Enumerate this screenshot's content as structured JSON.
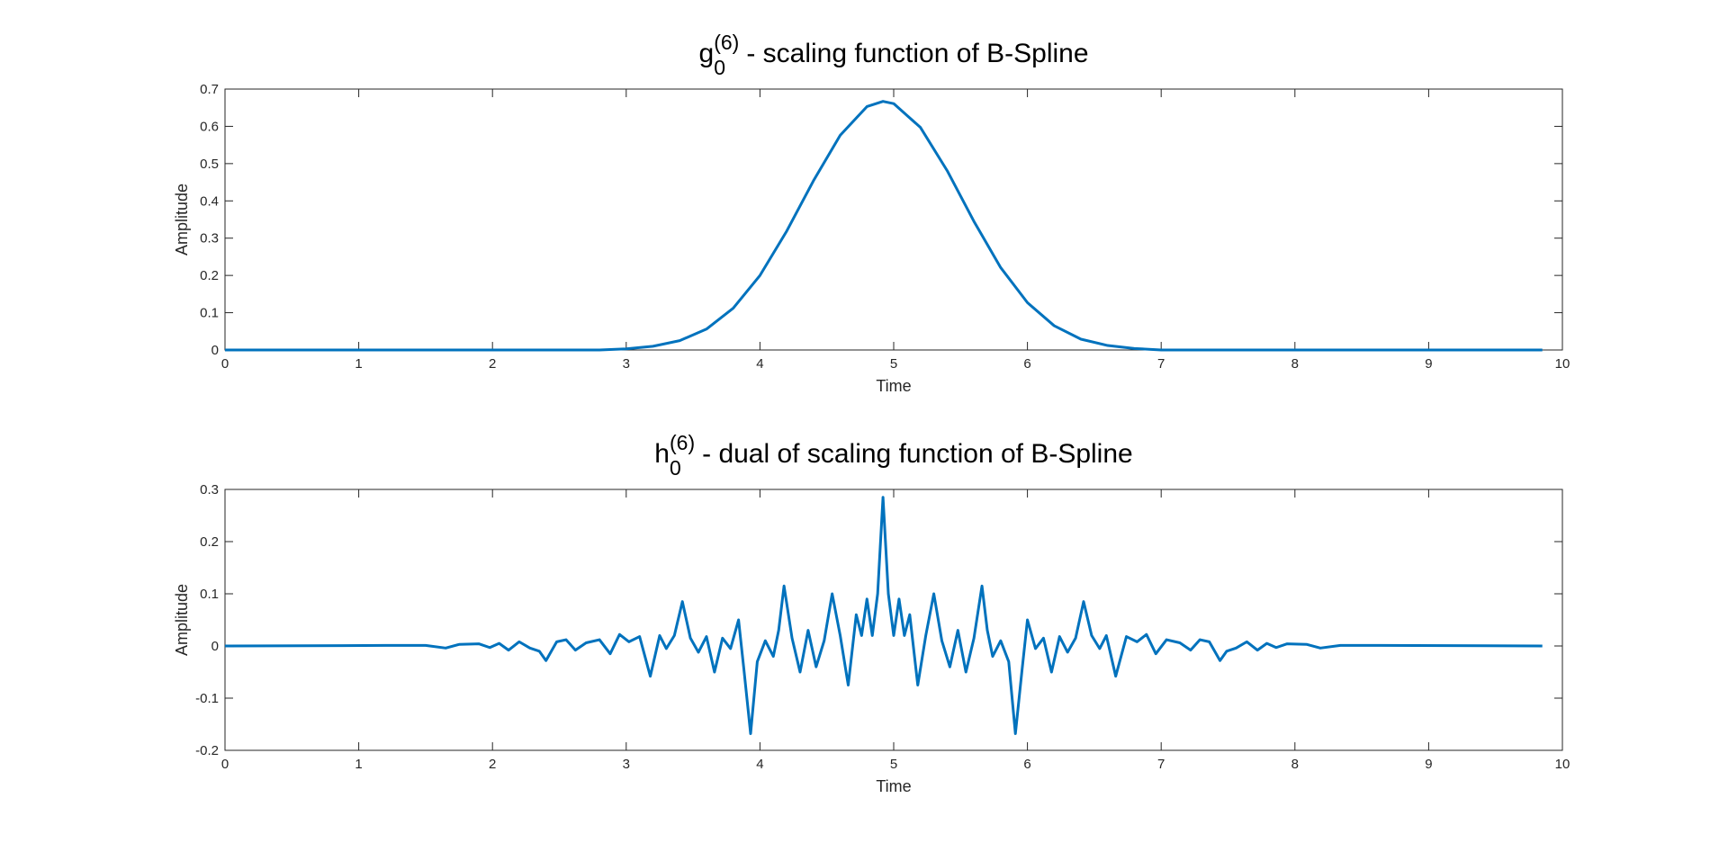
{
  "chart_data": [
    {
      "type": "line",
      "title": {
        "base": "g",
        "sup": "(6)",
        "sub": "0",
        "text": "- scaling function of B-Spline"
      },
      "xlabel": "Time",
      "ylabel": "Amplitude",
      "color": "#0072bd",
      "x": [
        0,
        1,
        2,
        2.8,
        3.0,
        3.2,
        3.4,
        3.6,
        3.8,
        4.0,
        4.2,
        4.4,
        4.6,
        4.8,
        4.92,
        5.0,
        5.2,
        5.4,
        5.6,
        5.8,
        6.0,
        6.2,
        6.4,
        6.6,
        6.8,
        7.0,
        8,
        9,
        9.85
      ],
      "values": [
        0,
        0,
        0,
        0,
        0.003,
        0.01,
        0.025,
        0.056,
        0.112,
        0.2,
        0.319,
        0.454,
        0.576,
        0.653,
        0.667,
        0.661,
        0.597,
        0.481,
        0.345,
        0.221,
        0.127,
        0.065,
        0.029,
        0.012,
        0.004,
        0,
        0,
        0,
        0
      ],
      "xlim": [
        0,
        10
      ],
      "xticks": [
        0,
        1,
        2,
        3,
        4,
        5,
        6,
        7,
        8,
        9,
        10
      ],
      "ylim": [
        0,
        0.7
      ],
      "yticks": [
        0,
        0.1,
        0.2,
        0.3,
        0.4,
        0.5,
        0.6,
        0.7
      ]
    },
    {
      "type": "line",
      "title": {
        "base": "h",
        "sup": "(6)",
        "sub": "0",
        "text": "- dual of scaling function of B-Spline"
      },
      "xlabel": "Time",
      "ylabel": "Amplitude",
      "color": "#0072bd",
      "x": [
        0,
        1.2,
        1.5,
        1.65,
        1.75,
        1.9,
        1.98,
        2.05,
        2.12,
        2.2,
        2.28,
        2.35,
        2.4,
        2.48,
        2.55,
        2.62,
        2.7,
        2.8,
        2.88,
        2.95,
        3.02,
        3.1,
        3.18,
        3.25,
        3.3,
        3.36,
        3.42,
        3.48,
        3.54,
        3.6,
        3.66,
        3.72,
        3.78,
        3.84,
        3.88,
        3.93,
        3.98,
        4.04,
        4.1,
        4.14,
        4.18,
        4.24,
        4.3,
        4.36,
        4.42,
        4.48,
        4.54,
        4.6,
        4.66,
        4.72,
        4.76,
        4.8,
        4.84,
        4.88,
        4.92,
        4.96,
        5.0,
        5.04,
        5.08,
        5.12,
        5.18,
        5.24,
        5.3,
        5.36,
        5.42,
        5.48,
        5.54,
        5.6,
        5.66,
        5.7,
        5.74,
        5.8,
        5.86,
        5.91,
        5.96,
        6.0,
        6.06,
        6.12,
        6.18,
        6.24,
        6.3,
        6.36,
        6.42,
        6.48,
        6.54,
        6.59,
        6.66,
        6.74,
        6.82,
        6.89,
        6.96,
        7.04,
        7.14,
        7.22,
        7.29,
        7.36,
        7.44,
        7.49,
        7.56,
        7.64,
        7.72,
        7.79,
        7.86,
        7.94,
        8.09,
        8.19,
        8.34,
        8.64,
        9.85
      ],
      "values": [
        0,
        0.001,
        0.001,
        -0.004,
        0.003,
        0.004,
        -0.003,
        0.005,
        -0.008,
        0.008,
        -0.004,
        -0.01,
        -0.028,
        0.008,
        0.012,
        -0.008,
        0.006,
        0.012,
        -0.015,
        0.022,
        0.008,
        0.018,
        -0.058,
        0.02,
        -0.005,
        0.02,
        0.085,
        0.015,
        -0.012,
        0.018,
        -0.05,
        0.015,
        -0.005,
        0.05,
        -0.045,
        -0.168,
        -0.03,
        0.01,
        -0.02,
        0.03,
        0.115,
        0.015,
        -0.05,
        0.03,
        -0.04,
        0.01,
        0.1,
        0.02,
        -0.075,
        0.06,
        0.02,
        0.09,
        0.02,
        0.1,
        0.285,
        0.1,
        0.02,
        0.09,
        0.02,
        0.06,
        -0.075,
        0.02,
        0.1,
        0.01,
        -0.04,
        0.03,
        -0.05,
        0.015,
        0.115,
        0.03,
        -0.02,
        0.01,
        -0.03,
        -0.168,
        -0.045,
        0.05,
        -0.005,
        0.015,
        -0.05,
        0.018,
        -0.012,
        0.015,
        0.085,
        0.02,
        -0.005,
        0.02,
        -0.058,
        0.018,
        0.008,
        0.022,
        -0.015,
        0.012,
        0.006,
        -0.008,
        0.012,
        0.008,
        -0.028,
        -0.01,
        -0.004,
        0.008,
        -0.008,
        0.005,
        -0.003,
        0.004,
        0.003,
        -0.004,
        0.001,
        0.001,
        0
      ],
      "xlim": [
        0,
        10
      ],
      "xticks": [
        0,
        1,
        2,
        3,
        4,
        5,
        6,
        7,
        8,
        9,
        10
      ],
      "ylim": [
        -0.2,
        0.3
      ],
      "yticks": [
        -0.2,
        -0.1,
        0,
        0.1,
        0.2,
        0.3
      ]
    }
  ]
}
